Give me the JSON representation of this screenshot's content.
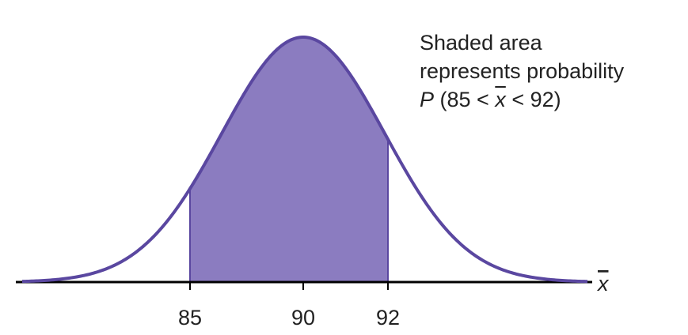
{
  "chart_data": {
    "type": "area",
    "distribution": "normal",
    "mean": 90,
    "shaded_interval": [
      85,
      92
    ],
    "x_ticks": [
      "85",
      "90",
      "92"
    ],
    "xlabel": "x̄",
    "annotation": {
      "line1": "Shaded area",
      "line2": "represents probability",
      "line3_p": "P",
      "line3_open": " (85 < ",
      "line3_var": "x",
      "line3_close": " < 92)"
    },
    "colors": {
      "curve": "#5a47a0",
      "shade": "#8b7cc0",
      "axis": "#000000"
    }
  }
}
